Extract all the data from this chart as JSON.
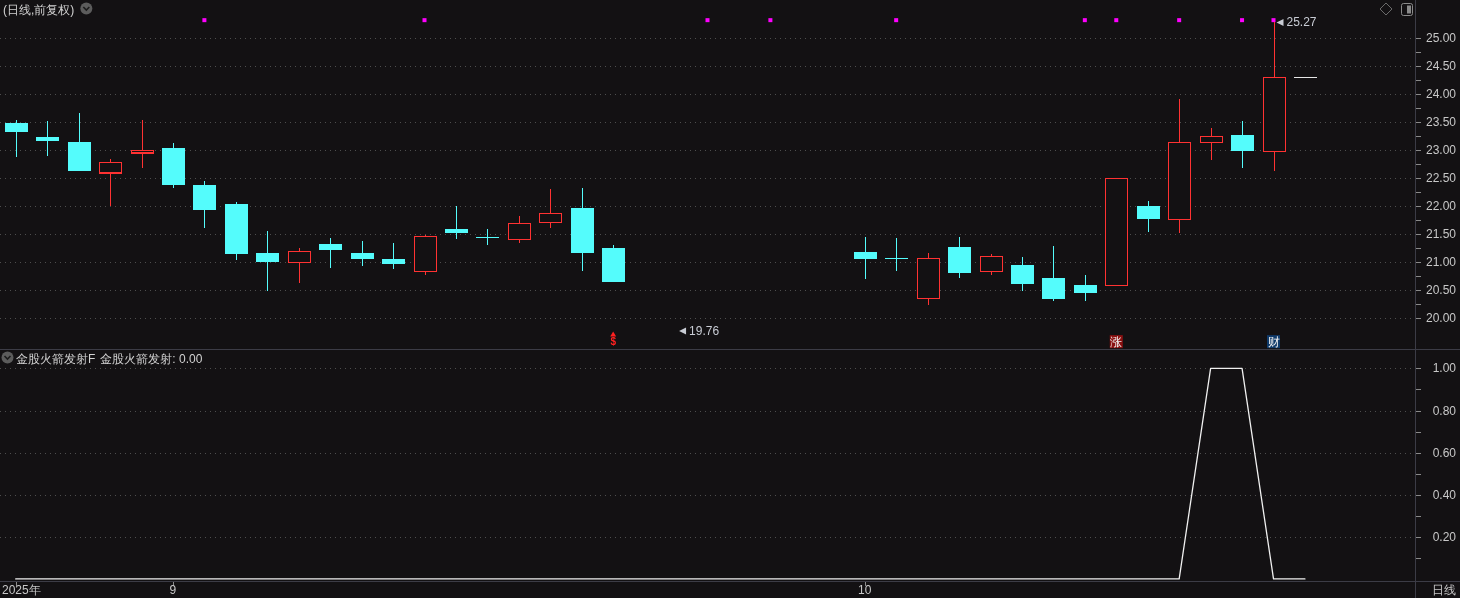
{
  "chart_data": [
    {
      "type": "candlestick",
      "title": "(日线,前复权)",
      "categories": [
        null,
        null,
        null,
        null,
        null,
        null,
        null,
        null,
        null,
        null,
        null,
        null,
        null,
        null,
        null,
        null,
        null,
        null,
        null,
        null,
        null,
        null,
        null,
        null,
        null,
        null,
        null,
        null,
        null,
        null,
        null,
        null,
        null,
        null,
        null,
        null,
        null,
        null,
        null,
        null,
        null,
        null,
        null,
        null,
        null
      ],
      "ohlc": [
        [
          23.47,
          23.52,
          22.87,
          23.31
        ],
        [
          23.22,
          23.51,
          22.89,
          23.15
        ],
        [
          23.13,
          23.65,
          22.62,
          22.62
        ],
        [
          22.58,
          22.84,
          21.99,
          22.77
        ],
        [
          22.94,
          23.52,
          22.67,
          22.98
        ],
        [
          23.02,
          23.11,
          22.31,
          22.37
        ],
        [
          22.36,
          22.43,
          21.6,
          21.92
        ],
        [
          22.02,
          22.06,
          21.03,
          21.14
        ],
        [
          21.15,
          21.54,
          20.48,
          20.99
        ],
        [
          20.98,
          21.25,
          20.62,
          21.18
        ],
        [
          21.31,
          21.42,
          20.89,
          21.21
        ],
        [
          21.15,
          21.36,
          20.92,
          21.05
        ],
        [
          21.04,
          21.33,
          20.87,
          20.96
        ],
        [
          20.82,
          21.47,
          20.76,
          21.45
        ],
        [
          21.58,
          21.99,
          21.4,
          21.51
        ],
        [
          21.43,
          21.59,
          21.3,
          21.43
        ],
        [
          21.4,
          21.81,
          21.33,
          21.68
        ],
        [
          21.7,
          22.29,
          21.6,
          21.86
        ],
        [
          21.95,
          22.31,
          20.83,
          21.15
        ],
        [
          21.24,
          21.29,
          20.64,
          20.64
        ],
        null,
        null,
        null,
        null,
        null,
        null,
        null,
        [
          21.17,
          21.43,
          20.69,
          21.05
        ],
        [
          21.05,
          21.42,
          20.84,
          21.05
        ],
        [
          20.34,
          21.16,
          20.23,
          21.05
        ],
        [
          21.26,
          21.43,
          20.71,
          20.8
        ],
        [
          20.82,
          21.13,
          20.76,
          21.09
        ],
        [
          20.93,
          21.08,
          20.47,
          20.6
        ],
        [
          20.7,
          21.27,
          20.3,
          20.33
        ],
        [
          20.59,
          20.76,
          20.3,
          20.44
        ],
        [
          20.57,
          22.48,
          20.57,
          22.48
        ],
        [
          22.0,
          22.09,
          21.53,
          21.76
        ],
        [
          21.75,
          23.91,
          21.51,
          23.13
        ],
        [
          23.13,
          23.38,
          22.81,
          23.23
        ],
        [
          23.26,
          23.51,
          22.67,
          22.98
        ],
        [
          22.96,
          25.27,
          22.61,
          24.29
        ],
        [
          24.29,
          24.29,
          24.29,
          24.29
        ],
        null,
        null,
        null
      ],
      "colors": [
        "#54fcfc",
        "#54fcfc",
        "#54fcfc",
        "#ff3232",
        "#ff3232",
        "#54fcfc",
        "#54fcfc",
        "#54fcfc",
        "#54fcfc",
        "#ff3232",
        "#54fcfc",
        "#54fcfc",
        "#54fcfc",
        "#ff3232",
        "#54fcfc",
        "#54fcfc",
        "#ff3232",
        "#ff3232",
        "#54fcfc",
        "#54fcfc",
        null,
        null,
        null,
        null,
        null,
        null,
        null,
        "#54fcfc",
        "#54fcfc",
        "#ff3232",
        "#54fcfc",
        "#ff3232",
        "#54fcfc",
        "#54fcfc",
        "#54fcfc",
        "#ff3232",
        "#54fcfc",
        "#ff3232",
        "#ff3232",
        "#54fcfc",
        "#ff3232",
        "#e6e6e6",
        null,
        null,
        null
      ],
      "series": [
        {
          "type": "scatter",
          "marker": "square",
          "color": "#ff00ff",
          "values": [
            null,
            null,
            null,
            null,
            null,
            null,
            25.31,
            null,
            null,
            null,
            null,
            null,
            null,
            25.31,
            null,
            null,
            null,
            null,
            null,
            null,
            null,
            null,
            25.31,
            null,
            25.31,
            null,
            null,
            null,
            25.31,
            null,
            null,
            null,
            null,
            null,
            25.31,
            25.31,
            null,
            25.31,
            null,
            25.31,
            25.31,
            null,
            null,
            null,
            null
          ]
        },
        {
          "type": "scatter",
          "marker": "triangle",
          "color": "#c8ccd4",
          "values": [
            null,
            null,
            null,
            null,
            null,
            null,
            null,
            null,
            null,
            null,
            null,
            null,
            null,
            null,
            null,
            null,
            null,
            null,
            null,
            null,
            null,
            19.76,
            null,
            null,
            null,
            null,
            null,
            null,
            null,
            null,
            null,
            null,
            null,
            null,
            null,
            null,
            null,
            null,
            null,
            null,
            25.27,
            null,
            null,
            null,
            null
          ],
          "value_labels": [
            null,
            null,
            null,
            null,
            null,
            null,
            null,
            null,
            null,
            null,
            null,
            null,
            null,
            null,
            null,
            null,
            null,
            null,
            null,
            null,
            null,
            "19.76",
            null,
            null,
            null,
            null,
            null,
            null,
            null,
            null,
            null,
            null,
            null,
            null,
            null,
            null,
            null,
            null,
            null,
            null,
            "25.27",
            null,
            null,
            null,
            null
          ]
        },
        {
          "type": "scatter",
          "marker": "triangle",
          "color": "#ff2020",
          "values": [
            null,
            null,
            null,
            null,
            null,
            null,
            null,
            null,
            null,
            null,
            null,
            null,
            null,
            null,
            null,
            null,
            null,
            null,
            null,
            19.7,
            null,
            null,
            null,
            null,
            null,
            null,
            null,
            null,
            null,
            null,
            null,
            null,
            null,
            null,
            null,
            null,
            null,
            null,
            null,
            null,
            null,
            null,
            null,
            null,
            null
          ],
          "value_labels": [
            null,
            null,
            null,
            null,
            null,
            null,
            null,
            null,
            null,
            null,
            null,
            null,
            null,
            null,
            null,
            null,
            null,
            null,
            null,
            "$",
            null,
            null,
            null,
            null,
            null,
            null,
            null,
            null,
            null,
            null,
            null,
            null,
            null,
            null,
            null,
            null,
            null,
            null,
            null,
            null,
            null,
            null,
            null,
            null,
            null
          ]
        },
        {
          "type": "scatter",
          "marker": "square",
          "colors": [
            null,
            null,
            null,
            null,
            null,
            null,
            null,
            null,
            null,
            null,
            null,
            null,
            null,
            null,
            null,
            null,
            null,
            null,
            null,
            null,
            null,
            null,
            null,
            null,
            null,
            null,
            null,
            null,
            null,
            null,
            null,
            null,
            null,
            null,
            null,
            "#8a1010",
            null,
            null,
            null,
            null,
            "#0f3a6a",
            null,
            null,
            null,
            null
          ],
          "values": [
            null,
            null,
            null,
            null,
            null,
            null,
            null,
            null,
            null,
            null,
            null,
            null,
            null,
            null,
            null,
            null,
            null,
            null,
            null,
            null,
            null,
            null,
            null,
            null,
            null,
            null,
            null,
            null,
            null,
            null,
            null,
            null,
            null,
            null,
            null,
            19.57,
            null,
            null,
            null,
            null,
            19.57,
            null,
            null,
            null,
            null
          ],
          "value_labels": [
            null,
            null,
            null,
            null,
            null,
            null,
            null,
            null,
            null,
            null,
            null,
            null,
            null,
            null,
            null,
            null,
            null,
            null,
            null,
            null,
            null,
            null,
            null,
            null,
            null,
            null,
            null,
            null,
            null,
            null,
            null,
            null,
            null,
            null,
            null,
            "涨",
            null,
            null,
            null,
            null,
            "财",
            null,
            null,
            null,
            null
          ]
        }
      ],
      "ylim": [
        19.43,
        25.67
      ],
      "yticks": [
        {
          "value": 20,
          "label": "20.00"
        },
        {
          "value": 20.25,
          "label": null
        },
        {
          "value": 20.5,
          "label": "20.50"
        },
        {
          "value": 20.75,
          "label": null
        },
        {
          "value": 21,
          "label": "21.00"
        },
        {
          "value": 21.25,
          "label": null
        },
        {
          "value": 21.5,
          "label": "21.50"
        },
        {
          "value": 21.75,
          "label": null
        },
        {
          "value": 22,
          "label": "22.00"
        },
        {
          "value": 22.25,
          "label": null
        },
        {
          "value": 22.5,
          "label": "22.50"
        },
        {
          "value": 22.75,
          "label": null
        },
        {
          "value": 23,
          "label": "23.00"
        },
        {
          "value": 23.25,
          "label": null
        },
        {
          "value": 23.5,
          "label": "23.50"
        },
        {
          "value": 23.75,
          "label": null
        },
        {
          "value": 24,
          "label": "24.00"
        },
        {
          "value": 24.25,
          "label": null
        },
        {
          "value": 24.5,
          "label": "24.50"
        },
        {
          "value": 24.75,
          "label": null
        },
        {
          "value": 25,
          "label": "25.00"
        }
      ],
      "grid": "y"
    },
    {
      "type": "line",
      "title": "金股火箭发射F",
      "subtitle": "金股火箭发射: 0.00",
      "categories": [
        "2025年",
        null,
        null,
        null,
        null,
        "9",
        null,
        null,
        null,
        null,
        null,
        null,
        null,
        null,
        null,
        null,
        null,
        null,
        null,
        null,
        null,
        null,
        null,
        null,
        null,
        null,
        null,
        "10",
        null,
        null,
        null,
        null,
        null,
        null,
        null,
        null,
        null,
        null,
        null,
        null,
        null,
        null,
        null,
        null,
        null
      ],
      "series": [
        {
          "color": "#f0f0f0",
          "values": [
            0,
            0,
            0,
            0,
            0,
            0,
            0,
            0,
            0,
            0,
            0,
            0,
            0,
            0,
            0,
            0,
            0,
            0,
            0,
            0,
            0,
            0,
            0,
            0,
            0,
            0,
            0,
            0,
            0,
            0,
            0,
            0,
            0,
            0,
            0,
            0,
            0,
            0,
            1,
            1,
            0,
            0,
            null,
            null,
            null
          ]
        }
      ],
      "ylim": [
        -0.01,
        1.09
      ],
      "yticks": [
        {
          "value": 0.1,
          "label": null
        },
        {
          "value": 0.2,
          "label": "0.20"
        },
        {
          "value": 0.3,
          "label": null
        },
        {
          "value": 0.4,
          "label": "0.40"
        },
        {
          "value": 0.5,
          "label": null
        },
        {
          "value": 0.6,
          "label": "0.60"
        },
        {
          "value": 0.7,
          "label": null
        },
        {
          "value": 0.8,
          "label": "0.80"
        },
        {
          "value": 0.9,
          "label": null
        },
        {
          "value": 1,
          "label": "1.00"
        }
      ],
      "grid": "y",
      "annotations": [
        "日线"
      ]
    }
  ]
}
